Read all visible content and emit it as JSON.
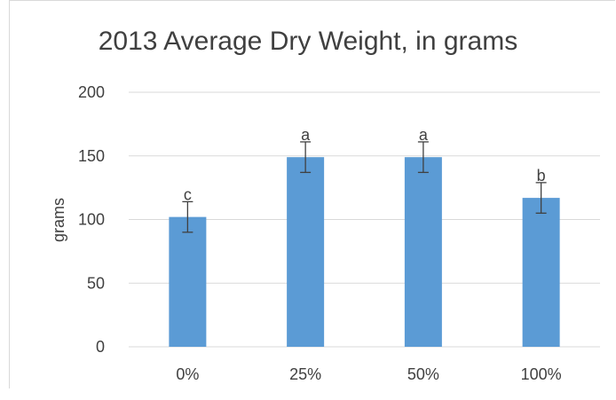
{
  "chart_data": {
    "type": "bar",
    "title": "2013 Average Dry Weight, in grams",
    "xlabel": "",
    "ylabel": "grams",
    "categories": [
      "0%",
      "25%",
      "50%",
      "100%"
    ],
    "values": [
      102,
      149,
      149,
      117
    ],
    "error": [
      12,
      12,
      12,
      12
    ],
    "significance_labels": [
      "c",
      "a",
      "a",
      "b"
    ],
    "ylim": [
      0,
      200
    ],
    "yticks": [
      0,
      50,
      100,
      150,
      200
    ],
    "ytick_labels": [
      "0",
      "50",
      "100",
      "150",
      "200"
    ],
    "grid": true,
    "legend": "none",
    "colors": {
      "bar": "#5b9bd5",
      "grid": "#d9d9d9",
      "error_bar": "#404040",
      "text": "#404040"
    }
  }
}
